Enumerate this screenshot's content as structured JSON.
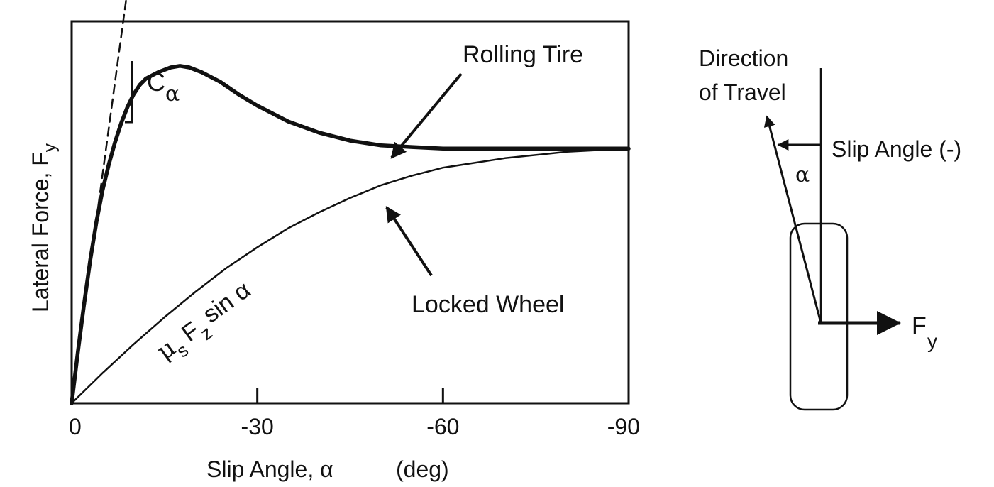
{
  "chart_data": {
    "type": "line",
    "xlabel": "Slip Angle, α",
    "xunit": "(deg)",
    "ylabel": "Lateral Force, F",
    "ylabel_sub": "y",
    "x_ticks": [
      "0",
      "-30",
      "-60",
      "-90"
    ],
    "x_tick_values": [
      0,
      -30,
      -60,
      -90
    ],
    "xlim": [
      0,
      -90
    ],
    "ylim": [
      0,
      1.2
    ],
    "grid": false,
    "legend": "none",
    "series": [
      {
        "name": "Rolling Tire",
        "style": "bold",
        "x": [
          0,
          -1,
          -2,
          -3,
          -4,
          -5,
          -6,
          -7,
          -8,
          -9,
          -10,
          -11,
          -12,
          -14,
          -16,
          -17.5,
          -19,
          -21,
          -24,
          -27,
          -30,
          -35,
          -40,
          -45,
          -50,
          -55,
          -60,
          -70,
          -80,
          -90
        ],
        "y": [
          0,
          0.16,
          0.31,
          0.45,
          0.57,
          0.67,
          0.75,
          0.82,
          0.88,
          0.93,
          0.97,
          1.0,
          1.02,
          1.04,
          1.055,
          1.06,
          1.055,
          1.04,
          1.01,
          0.97,
          0.935,
          0.885,
          0.85,
          0.825,
          0.81,
          0.805,
          0.8,
          0.8,
          0.8,
          0.8
        ]
      },
      {
        "name": "Locked Wheel",
        "style": "thin",
        "x": [
          0,
          -5,
          -10,
          -15,
          -20,
          -25,
          -30,
          -35,
          -40,
          -45,
          -50,
          -55,
          -60,
          -70,
          -80,
          -90
        ],
        "y": [
          0,
          0.095,
          0.185,
          0.27,
          0.35,
          0.425,
          0.49,
          0.55,
          0.6,
          0.645,
          0.685,
          0.715,
          0.74,
          0.77,
          0.79,
          0.8
        ]
      },
      {
        "name": "C_alpha",
        "style": "dashed",
        "x": [
          0,
          -10
        ],
        "y": [
          0,
          1.44
        ]
      }
    ]
  },
  "annotations": {
    "rolling_tire": "Rolling Tire",
    "locked_wheel": "Locked Wheel",
    "c_alpha_main": "C",
    "c_alpha_sub": "α",
    "mu_text": "μ",
    "mu_sub": "s",
    "fz_text": "F",
    "fz_sub": "z",
    "sin_alpha": "sin α"
  },
  "diagram": {
    "direction_of_travel": [
      "Direction",
      "of Travel"
    ],
    "slip_angle": "Slip Angle (-)",
    "alpha": "α",
    "force_main": "F",
    "force_sub": "y"
  },
  "colors": {
    "ink": "#111111",
    "background": "#ffffff"
  }
}
